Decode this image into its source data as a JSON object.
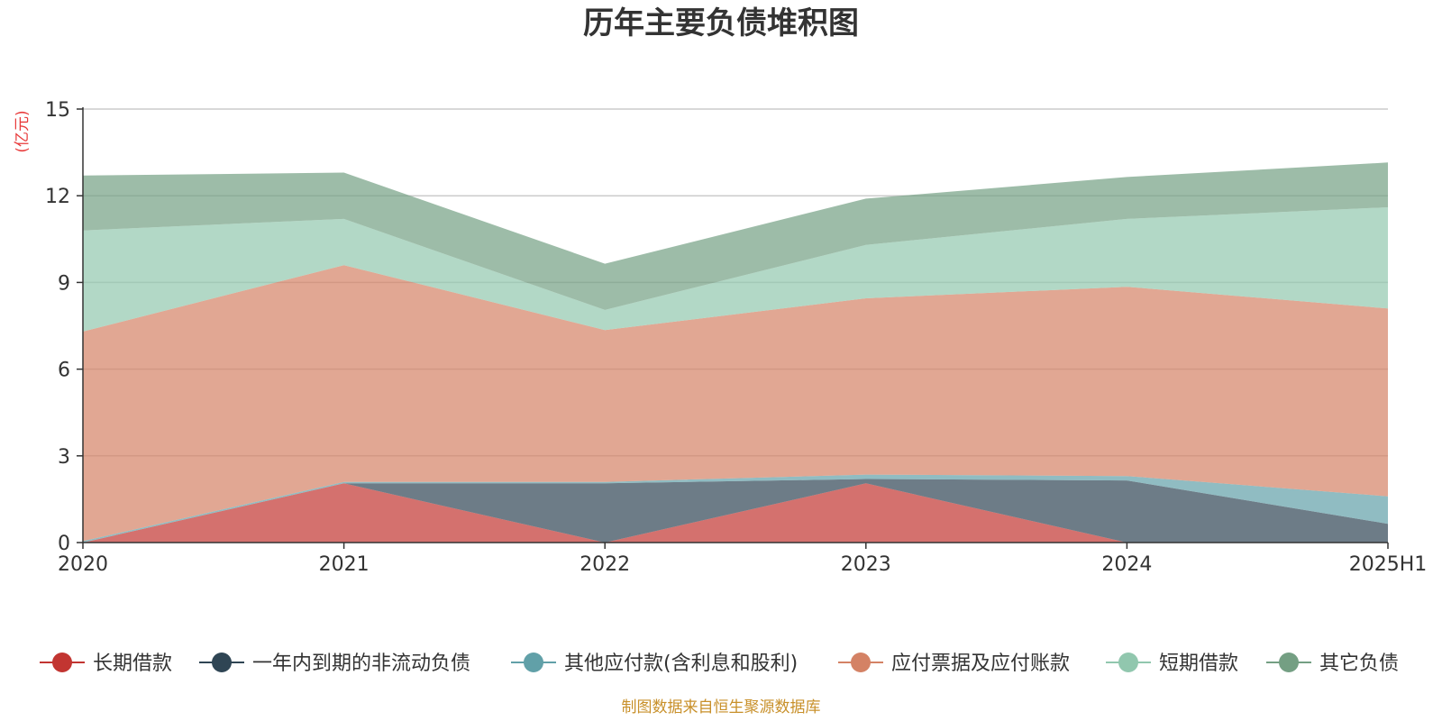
{
  "chart_data": {
    "type": "area",
    "stacked": true,
    "title": "历年主要负债堆积图",
    "y_unit": "(亿元)",
    "categories": [
      "2020",
      "2021",
      "2022",
      "2023",
      "2024",
      "2025H1"
    ],
    "y_ticks": [
      "0",
      "3",
      "6",
      "9",
      "12",
      "15"
    ],
    "ylim": [
      0,
      15
    ],
    "grid": true,
    "legend_position": "bottom",
    "series": [
      {
        "name": "长期借款",
        "color": "#c23531",
        "values": [
          0.0,
          2.05,
          0.0,
          2.05,
          0.0,
          0.0
        ]
      },
      {
        "name": "一年内到期的非流动负债",
        "color": "#2f4554",
        "values": [
          0.0,
          0.0,
          2.05,
          0.15,
          2.15,
          0.65
        ]
      },
      {
        "name": "其他应付款(含利息和股利)",
        "color": "#61a0a8",
        "values": [
          0.05,
          0.05,
          0.05,
          0.15,
          0.15,
          0.95
        ]
      },
      {
        "name": "应付票据及应付账款",
        "color": "#d48265",
        "values": [
          7.25,
          7.5,
          5.25,
          6.1,
          6.55,
          6.5
        ]
      },
      {
        "name": "短期借款",
        "color": "#91c7ae",
        "values": [
          3.5,
          1.6,
          0.7,
          1.85,
          2.35,
          3.5
        ]
      },
      {
        "name": "其它负债",
        "color": "#749f83",
        "values": [
          1.9,
          1.6,
          1.6,
          1.6,
          1.45,
          1.55
        ]
      }
    ]
  },
  "source_note": "制图数据来自恒生聚源数据库"
}
